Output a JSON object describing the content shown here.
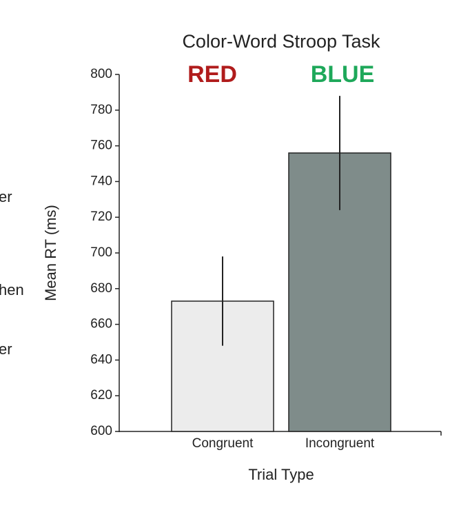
{
  "chart_data": {
    "type": "bar",
    "title": "Color-Word Stroop Task",
    "annotations": [
      {
        "text": "RED",
        "color": "#b01c1c"
      },
      {
        "text": "BLUE",
        "color": "#1ea85a"
      }
    ],
    "categories": [
      "Congruent",
      "Incongruent"
    ],
    "values": [
      673,
      756
    ],
    "errors": [
      25,
      32
    ],
    "colors": [
      "#ececec",
      "#7f8c8a"
    ],
    "x_label": "Trial Type",
    "y_label": "Mean RT (ms)",
    "ylim": [
      600,
      800
    ],
    "yticks": [
      600,
      620,
      640,
      660,
      680,
      700,
      720,
      740,
      760,
      780,
      800
    ],
    "grid": false
  },
  "fragments": [
    "er",
    "hen",
    "er"
  ]
}
